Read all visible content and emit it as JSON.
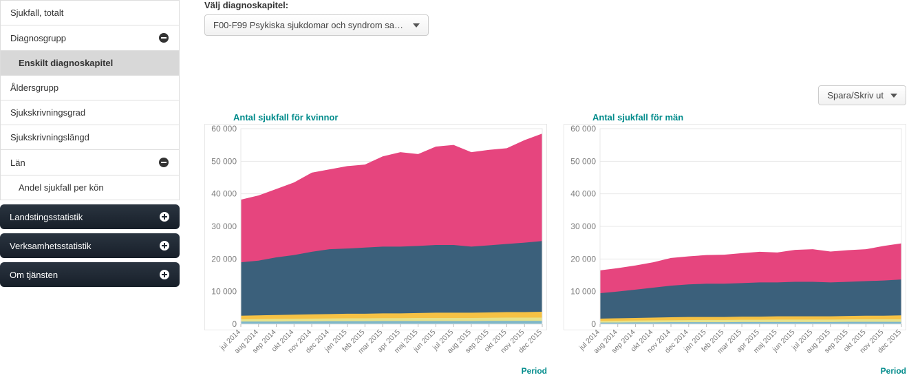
{
  "sidebar": {
    "items": [
      {
        "label": "Sjukfall, totalt",
        "type": "plain"
      },
      {
        "label": "Diagnosgrupp",
        "type": "collapsible",
        "icon": "minus"
      },
      {
        "label": "Enskilt diagnoskapitel",
        "type": "sub",
        "active": true
      },
      {
        "label": "Åldersgrupp",
        "type": "plain"
      },
      {
        "label": "Sjukskrivningsgrad",
        "type": "plain"
      },
      {
        "label": "Sjukskrivningslängd",
        "type": "plain"
      },
      {
        "label": "Län",
        "type": "collapsible",
        "icon": "minus"
      },
      {
        "label": "Andel sjukfall per kön",
        "type": "sub"
      }
    ],
    "dark": [
      {
        "label": "Landstingsstatistik",
        "icon": "plus"
      },
      {
        "label": "Verksamhetsstatistik",
        "icon": "plus"
      },
      {
        "label": "Om tjänsten",
        "icon": "plus"
      }
    ]
  },
  "filter": {
    "label": "Välj diagnoskapitel:",
    "selected": "F00-F99 Psykiska sjukdomar och syndrom sa…"
  },
  "actions": {
    "spara_label": "Spara/Skriv ut"
  },
  "charts": {
    "ymax": 60000,
    "ytick_step": 10000,
    "background_color": "#ffffff",
    "grid_color": "#e7e7e7",
    "title_color": "#008b8b",
    "axis_label_color": "#7a7a7a",
    "period_label": "Period",
    "categories": [
      "jul 2014",
      "aug 2014",
      "sep 2014",
      "okt 2014",
      "nov 2014",
      "dec 2014",
      "jan 2015",
      "feb 2015",
      "mar 2015",
      "apr 2015",
      "maj 2015",
      "jun 2015",
      "jul 2015",
      "aug 2015",
      "sep 2015",
      "okt 2015",
      "nov 2015",
      "dec 2015"
    ],
    "series_colors": {
      "s1": "#7fb7c9",
      "s2": "#e7e28a",
      "s3": "#f6c244",
      "s4": "#3b607b",
      "s5": "#e6457e"
    },
    "left": {
      "title": "Antal sjukfall för kvinnor",
      "series": {
        "s1": [
          800,
          800,
          800,
          850,
          850,
          900,
          900,
          900,
          950,
          950,
          950,
          950,
          950,
          950,
          1000,
          1000,
          1000,
          1000
        ],
        "s2": [
          1500,
          1550,
          1600,
          1650,
          1700,
          1750,
          1800,
          1800,
          1850,
          1850,
          1900,
          1900,
          1900,
          1900,
          1950,
          2000,
          2000,
          2000
        ],
        "s3": [
          2600,
          2700,
          2800,
          2900,
          3000,
          3100,
          3200,
          3200,
          3300,
          3300,
          3400,
          3500,
          3500,
          3500,
          3600,
          3700,
          3700,
          3800
        ],
        "s4": [
          19000,
          19500,
          20500,
          21200,
          22200,
          23000,
          23200,
          23500,
          23800,
          23800,
          24000,
          24300,
          24300,
          23800,
          24200,
          24600,
          25000,
          25500
        ],
        "s5": [
          38200,
          39500,
          41500,
          43500,
          46500,
          47500,
          48500,
          49000,
          51500,
          52800,
          52200,
          54500,
          55000,
          52800,
          53500,
          54000,
          56500,
          58500
        ]
      }
    },
    "right": {
      "title": "Antal sjukfall för män",
      "series": {
        "s1": [
          500,
          500,
          550,
          550,
          600,
          600,
          600,
          600,
          650,
          650,
          650,
          650,
          650,
          650,
          700,
          700,
          700,
          700
        ],
        "s2": [
          1000,
          1050,
          1100,
          1150,
          1200,
          1250,
          1300,
          1300,
          1350,
          1350,
          1400,
          1400,
          1400,
          1400,
          1450,
          1500,
          1500,
          1500
        ],
        "s3": [
          1700,
          1800,
          1900,
          2000,
          2100,
          2200,
          2200,
          2200,
          2300,
          2300,
          2400,
          2400,
          2400,
          2400,
          2500,
          2600,
          2600,
          2700
        ],
        "s4": [
          9500,
          10000,
          10600,
          11200,
          11800,
          12200,
          12400,
          12400,
          12600,
          12800,
          12800,
          13000,
          13000,
          12800,
          13000,
          13200,
          13400,
          13700
        ],
        "s5": [
          16500,
          17200,
          18000,
          19000,
          20300,
          20800,
          21200,
          21300,
          21800,
          22200,
          22000,
          22800,
          23000,
          22300,
          22700,
          23000,
          24000,
          24800
        ]
      }
    }
  }
}
